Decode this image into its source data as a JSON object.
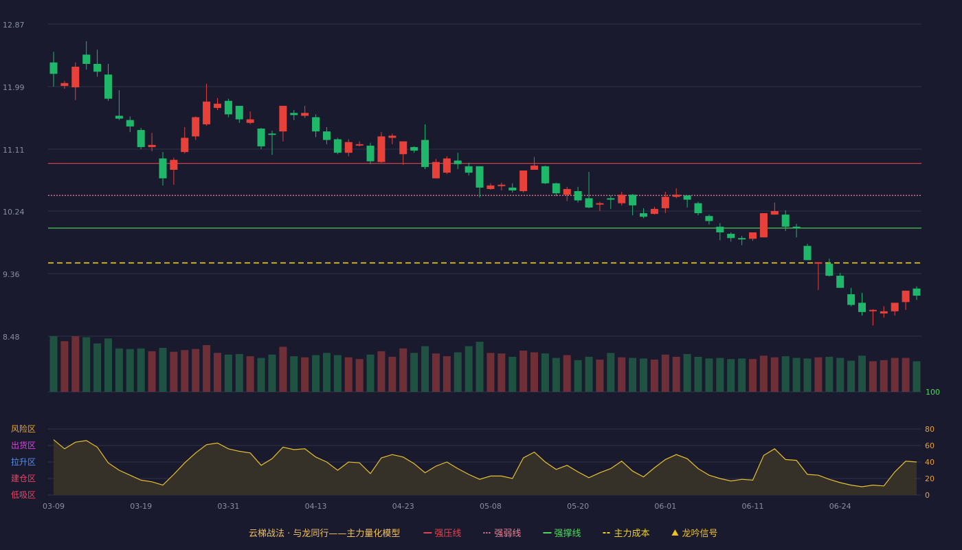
{
  "chart_data": {
    "type": "candlestick",
    "y_ticks": [
      "12.87",
      "11.99",
      "11.11",
      "10.24",
      "9.36",
      "8.48"
    ],
    "ylim": [
      8.48,
      12.87
    ],
    "x_labels": [
      {
        "index": 0,
        "label": "03-09"
      },
      {
        "index": 8,
        "label": "03-19"
      },
      {
        "index": 16,
        "label": "03-31"
      },
      {
        "index": 24,
        "label": "04-13"
      },
      {
        "index": 32,
        "label": "04-23"
      },
      {
        "index": 40,
        "label": "05-08"
      },
      {
        "index": 48,
        "label": "05-20"
      },
      {
        "index": 56,
        "label": "06-01"
      },
      {
        "index": 64,
        "label": "06-11"
      },
      {
        "index": 72,
        "label": "06-24"
      }
    ],
    "candles": [
      [
        12.33,
        12.17,
        12.48,
        11.99
      ],
      [
        12.0,
        12.04,
        12.07,
        11.96
      ],
      [
        11.98,
        12.27,
        12.33,
        11.8
      ],
      [
        12.44,
        12.31,
        12.63,
        12.23
      ],
      [
        12.31,
        12.2,
        12.51,
        12.13
      ],
      [
        12.16,
        11.82,
        12.31,
        11.79
      ],
      [
        11.58,
        11.54,
        11.94,
        11.52
      ],
      [
        11.52,
        11.43,
        11.57,
        11.35
      ],
      [
        11.38,
        11.14,
        11.41,
        11.11
      ],
      [
        11.14,
        11.17,
        11.34,
        11.08
      ],
      [
        10.98,
        10.7,
        11.07,
        10.6
      ],
      [
        10.82,
        10.96,
        10.99,
        10.61
      ],
      [
        11.07,
        11.27,
        11.42,
        11.05
      ],
      [
        11.29,
        11.56,
        11.57,
        11.24
      ],
      [
        11.46,
        11.78,
        12.03,
        11.44
      ],
      [
        11.69,
        11.75,
        11.83,
        11.66
      ],
      [
        11.79,
        11.6,
        11.82,
        11.56
      ],
      [
        11.72,
        11.53,
        11.71,
        11.48
      ],
      [
        11.48,
        11.53,
        11.64,
        11.46
      ],
      [
        11.4,
        11.15,
        11.41,
        11.11
      ],
      [
        11.33,
        11.32,
        11.37,
        11.03
      ],
      [
        11.36,
        11.72,
        11.72,
        11.22
      ],
      [
        11.62,
        11.59,
        11.66,
        11.52
      ],
      [
        11.58,
        11.62,
        11.72,
        11.55
      ],
      [
        11.56,
        11.36,
        11.6,
        11.28
      ],
      [
        11.36,
        11.24,
        11.42,
        11.18
      ],
      [
        11.25,
        11.06,
        11.27,
        11.04
      ],
      [
        11.06,
        11.21,
        11.25,
        11.01
      ],
      [
        11.18,
        11.18,
        11.22,
        11.15
      ],
      [
        11.16,
        10.94,
        11.2,
        10.9
      ],
      [
        10.93,
        11.29,
        11.35,
        10.92
      ],
      [
        11.27,
        11.3,
        11.33,
        11.18
      ],
      [
        11.04,
        11.22,
        11.22,
        10.89
      ],
      [
        11.14,
        11.09,
        11.15,
        11.06
      ],
      [
        11.24,
        10.86,
        11.46,
        10.83
      ],
      [
        10.7,
        10.93,
        10.97,
        10.7
      ],
      [
        10.78,
        10.98,
        11.01,
        10.76
      ],
      [
        10.95,
        10.9,
        11.06,
        10.83
      ],
      [
        10.87,
        10.78,
        10.92,
        10.74
      ],
      [
        10.87,
        10.57,
        10.87,
        10.43
      ],
      [
        10.55,
        10.6,
        10.63,
        10.54
      ],
      [
        10.61,
        10.61,
        10.64,
        10.53
      ],
      [
        10.57,
        10.53,
        10.63,
        10.5
      ],
      [
        10.52,
        10.81,
        10.81,
        10.5
      ],
      [
        10.82,
        10.88,
        11.0,
        10.82
      ],
      [
        10.87,
        10.63,
        10.88,
        10.62
      ],
      [
        10.63,
        10.49,
        10.64,
        10.45
      ],
      [
        10.47,
        10.55,
        10.58,
        10.38
      ],
      [
        10.52,
        10.39,
        10.58,
        10.36
      ],
      [
        10.42,
        10.29,
        10.79,
        10.28
      ],
      [
        10.35,
        10.35,
        10.37,
        10.24
      ],
      [
        10.42,
        10.4,
        10.46,
        10.27
      ],
      [
        10.35,
        10.47,
        10.51,
        10.32
      ],
      [
        10.47,
        10.32,
        10.48,
        10.18
      ],
      [
        10.21,
        10.16,
        10.28,
        10.14
      ],
      [
        10.2,
        10.27,
        10.3,
        10.19
      ],
      [
        10.28,
        10.44,
        10.51,
        10.21
      ],
      [
        10.44,
        10.47,
        10.56,
        10.42
      ],
      [
        10.46,
        10.4,
        10.46,
        10.29
      ],
      [
        10.35,
        10.21,
        10.37,
        10.18
      ],
      [
        10.17,
        10.1,
        10.19,
        10.05
      ],
      [
        10.02,
        9.94,
        10.07,
        9.83
      ],
      [
        9.92,
        9.86,
        9.94,
        9.81
      ],
      [
        9.86,
        9.85,
        9.89,
        9.76
      ],
      [
        9.85,
        9.94,
        9.94,
        9.82
      ],
      [
        9.87,
        10.21,
        10.21,
        9.87
      ],
      [
        10.19,
        10.24,
        10.36,
        10.19
      ],
      [
        10.19,
        10.02,
        10.25,
        9.96
      ],
      [
        10.02,
        10.0,
        10.06,
        9.87
      ],
      [
        9.75,
        9.55,
        9.78,
        9.55
      ],
      [
        9.5,
        9.52,
        9.52,
        9.13
      ],
      [
        9.5,
        9.33,
        9.57,
        9.32
      ],
      [
        9.33,
        9.16,
        9.37,
        9.16
      ],
      [
        9.07,
        8.92,
        9.16,
        8.9
      ],
      [
        8.95,
        8.82,
        9.09,
        8.77
      ],
      [
        8.85,
        8.85,
        8.86,
        8.63
      ],
      [
        8.8,
        8.83,
        8.9,
        8.74
      ],
      [
        8.83,
        8.95,
        8.95,
        8.77
      ],
      [
        8.96,
        9.12,
        9.12,
        8.85
      ],
      [
        9.15,
        9.05,
        9.18,
        8.99
      ]
    ],
    "horizontal_lines": [
      {
        "name": "强压线",
        "value": 10.91,
        "color": "#e0454f",
        "style": "solid"
      },
      {
        "name": "强弱线",
        "value": 10.46,
        "color": "#f08090",
        "style": "dotted"
      },
      {
        "name": "强撑线",
        "value": 10.0,
        "color": "#4cdc5a",
        "style": "solid"
      },
      {
        "name": "主力成本",
        "value": 9.51,
        "color": "#f0d020",
        "style": "dashed"
      }
    ],
    "volume": [
      100,
      91,
      100,
      98,
      87,
      96,
      78,
      77,
      78,
      73,
      79,
      72,
      75,
      77,
      84,
      70,
      67,
      68,
      64,
      61,
      67,
      81,
      64,
      62,
      66,
      70,
      66,
      62,
      59,
      67,
      73,
      63,
      78,
      70,
      82,
      69,
      64,
      71,
      82,
      90,
      70,
      69,
      63,
      74,
      71,
      69,
      61,
      66,
      57,
      63,
      58,
      70,
      62,
      61,
      60,
      58,
      67,
      63,
      68,
      63,
      60,
      61,
      59,
      60,
      59,
      65,
      62,
      64,
      61,
      60,
      62,
      63,
      61,
      56,
      65,
      55,
      57,
      61,
      61,
      55
    ],
    "volume_max_label": "100",
    "oscillator": {
      "y_ticks": [
        "100",
        "80",
        "60",
        "40",
        "20",
        "0"
      ],
      "ylim": [
        0,
        100
      ],
      "zones": [
        {
          "label": "风险区",
          "value": 80,
          "color": "#f0a020"
        },
        {
          "label": "出货区",
          "value": 60,
          "color": "#e040e0"
        },
        {
          "label": "拉升区",
          "value": 40,
          "color": "#5090f0"
        },
        {
          "label": "建仓区",
          "value": 20,
          "color": "#f04060"
        },
        {
          "label": "低吸区",
          "value": 0,
          "color": "#f04060"
        }
      ],
      "values": [
        67,
        56,
        64,
        66,
        58,
        39,
        30,
        24,
        18,
        16,
        12,
        25,
        39,
        51,
        61,
        63,
        56,
        53,
        51,
        36,
        44,
        58,
        55,
        56,
        46,
        40,
        30,
        40,
        39,
        26,
        45,
        49,
        46,
        38,
        27,
        35,
        40,
        32,
        25,
        19,
        23,
        23,
        20,
        45,
        52,
        40,
        31,
        36,
        28,
        21,
        27,
        32,
        41,
        29,
        22,
        33,
        43,
        49,
        44,
        32,
        24,
        20,
        17,
        19,
        18,
        48,
        56,
        43,
        42,
        25,
        24,
        19,
        15,
        12,
        10,
        12,
        11,
        28,
        41,
        40
      ],
      "line_color": "#e8c030"
    },
    "legend": [
      {
        "label": "云梯战法 · 与龙同行——主力量化模型",
        "color": "#f0c060",
        "marker": "none"
      },
      {
        "label": "强压线",
        "color": "#e0454f",
        "marker": "line"
      },
      {
        "label": "强弱线",
        "color": "#f08090",
        "marker": "dotted"
      },
      {
        "label": "强撑线",
        "color": "#4cdc5a",
        "marker": "line"
      },
      {
        "label": "主力成本",
        "color": "#f0d020",
        "marker": "dashed"
      },
      {
        "label": "龙吟信号",
        "color": "#f0c020",
        "marker": "triangle"
      }
    ],
    "colors": {
      "up": "#e8413a",
      "down": "#1fb86a",
      "volume_up": "#6e2f37",
      "volume_down": "#1f5240",
      "grid": "#2f3248",
      "background": "#1a1a2e",
      "axis_text": "#8a8fa3",
      "volume_max": "#4cdc5a",
      "oscillator_right": "#e8a040"
    }
  }
}
